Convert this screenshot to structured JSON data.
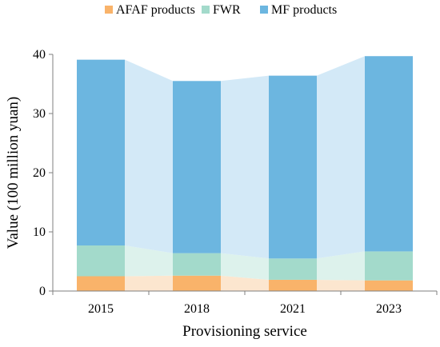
{
  "chart_data": {
    "type": "bar",
    "stacked": true,
    "categories": [
      "2015",
      "2018",
      "2021",
      "2023"
    ],
    "series": [
      {
        "name": "AFAF products",
        "values": [
          2.5,
          2.6,
          1.9,
          1.8
        ],
        "color": "#F9B36A",
        "band_color": "#FCE6CF"
      },
      {
        "name": "FWR",
        "values": [
          5.2,
          3.8,
          3.6,
          4.9
        ],
        "color": "#A3DACB",
        "band_color": "#DDF2EC"
      },
      {
        "name": "MF products",
        "values": [
          31.4,
          29.1,
          30.9,
          33.0
        ],
        "color": "#6CB6E0",
        "band_color": "#D3E9F7"
      }
    ],
    "xlabel": "Provisioning service",
    "ylabel": "Value (100 million yuan)",
    "ylim": [
      0,
      40
    ],
    "yticks": [
      "0",
      "10",
      "20",
      "30",
      "40"
    ],
    "grid": false,
    "legend_position": "top"
  }
}
